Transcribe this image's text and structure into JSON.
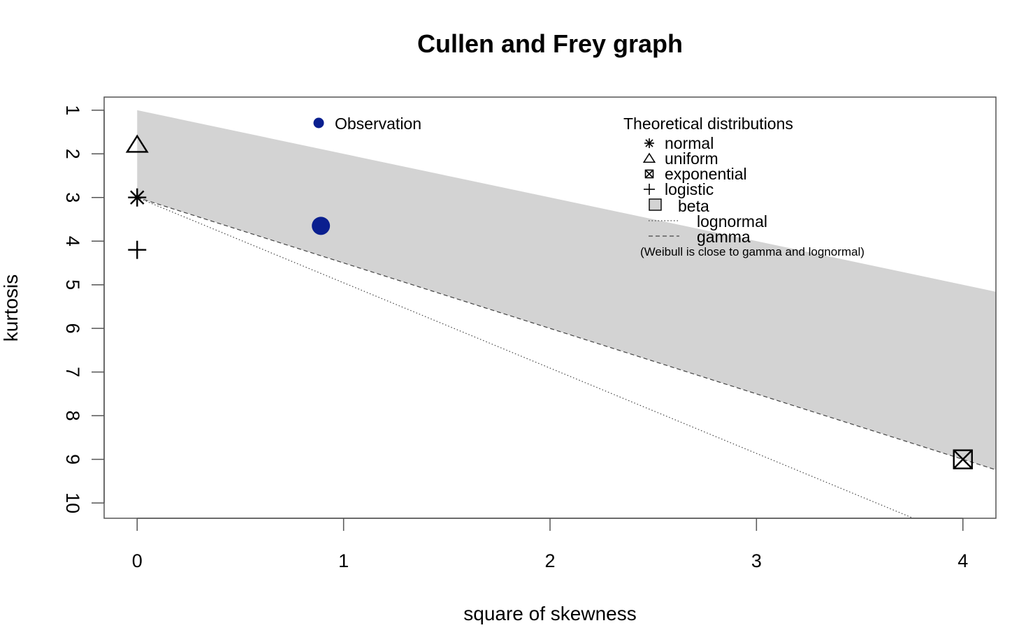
{
  "chart_data": {
    "type": "scatter",
    "title": "Cullen and Frey graph",
    "xlabel": "square of skewness",
    "ylabel": "kurtosis",
    "xlim": [
      -0.16,
      4.16
    ],
    "ylim": [
      10.35,
      0.7
    ],
    "y_reversed": true,
    "x_ticks": [
      "0",
      "1",
      "2",
      "3",
      "4"
    ],
    "y_ticks": [
      "1",
      "2",
      "3",
      "4",
      "5",
      "6",
      "7",
      "8",
      "9",
      "10"
    ],
    "observation": {
      "name": "Observation",
      "x": 0.89,
      "y": 3.65,
      "color": "#0a1f8f"
    },
    "theoretical_points": [
      {
        "name": "normal",
        "x": 0,
        "y": 3,
        "symbol": "asterisk"
      },
      {
        "name": "uniform",
        "x": 0,
        "y": 1.8,
        "symbol": "triangle"
      },
      {
        "name": "exponential",
        "x": 4,
        "y": 9,
        "symbol": "boxed-x"
      },
      {
        "name": "logistic",
        "x": 0,
        "y": 4.2,
        "symbol": "plus"
      }
    ],
    "beta_region": {
      "name": "beta",
      "color": "#d3d3d3",
      "upper_boundary": [
        [
          0,
          1
        ],
        [
          4.16,
          5.16
        ]
      ],
      "lower_boundary": [
        [
          0,
          3
        ],
        [
          4.16,
          9.24
        ]
      ]
    },
    "lognormal_line": {
      "name": "lognormal",
      "points": [
        [
          0,
          3
        ],
        [
          3.76,
          10.35
        ]
      ]
    },
    "gamma_line": {
      "name": "gamma",
      "points": [
        [
          0,
          3
        ],
        [
          4.16,
          9.24
        ]
      ]
    },
    "legend": {
      "observation_label": "Observation",
      "theoretical_title": "Theoretical distributions",
      "entries": [
        "normal",
        "uniform",
        "exponential",
        "logistic",
        "beta",
        "lognormal",
        "gamma"
      ],
      "note": "(Weibull is close to gamma and lognormal)"
    }
  }
}
